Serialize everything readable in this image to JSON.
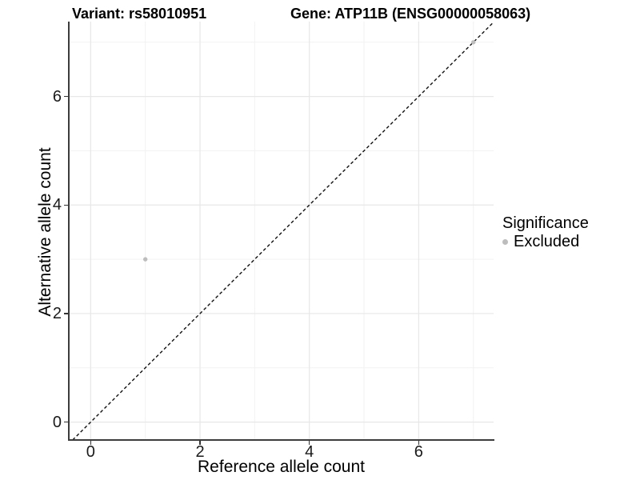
{
  "titles": {
    "variant": "Variant: rs58010951",
    "gene": "Gene: ATP11B (ENSG00000058063)"
  },
  "axes": {
    "x": {
      "label": "Reference allele count",
      "tick_labels": [
        "0",
        "2",
        "4",
        "6"
      ]
    },
    "y": {
      "label": "Alternative allele count",
      "tick_labels": [
        "0",
        "2",
        "4",
        "6"
      ]
    }
  },
  "legend": {
    "title": "Significance",
    "items": [
      {
        "label": "Excluded",
        "color": "#bdbdbd"
      }
    ]
  },
  "chart_data": {
    "type": "scatter",
    "title": "Variant: rs58010951 — Gene: ATP11B (ENSG00000058063)",
    "xlabel": "Reference allele count",
    "ylabel": "Alternative allele count",
    "xlim": [
      -0.4,
      7.37
    ],
    "ylim": [
      -0.33,
      7.38
    ],
    "x_ticks": [
      0,
      2,
      4,
      6
    ],
    "y_ticks": [
      0,
      2,
      4,
      6
    ],
    "x_minor_ticks": [
      1,
      3,
      5,
      7
    ],
    "y_minor_ticks": [
      1,
      3,
      5,
      7
    ],
    "grid": true,
    "legend_position": "right",
    "series": [
      {
        "name": "Excluded",
        "color": "#bdbdbd",
        "points": [
          [
            1,
            3
          ],
          [
            7,
            7
          ]
        ]
      }
    ],
    "reference_line": {
      "type": "identity",
      "equation": "y = x",
      "style": "dashed",
      "color": "#111111"
    },
    "colors": {
      "grid_major": "#e7e7e7",
      "grid_minor": "#f2f2f2",
      "axis_line": "#3c3c3c",
      "tick_mark": "#333333",
      "point": "#bdbdbd"
    }
  }
}
